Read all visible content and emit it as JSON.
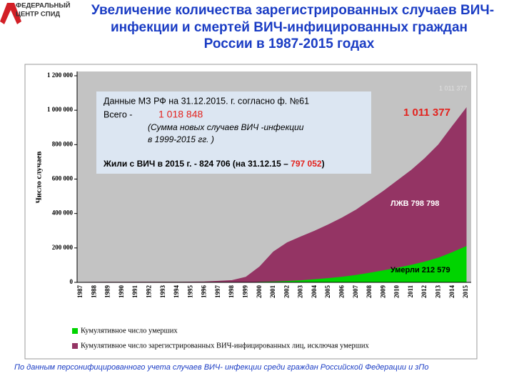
{
  "header": {
    "logo": [
      "ФЕДЕРАЛЬНЫЙ",
      "ЦЕНТР СПИД"
    ],
    "title": [
      "Увеличение количества зарегистрированных случаев ВИЧ-",
      "инфекции и смертей ВИЧ-инфицированных  граждан",
      "России в 1987-2015 годах"
    ]
  },
  "chart_data": {
    "type": "stacked_area",
    "y_label": "Число случаев",
    "categories": [
      "1987",
      "1988",
      "1989",
      "1990",
      "1991",
      "1992",
      "1993",
      "1994",
      "1995",
      "1996",
      "1997",
      "1998",
      "1999",
      "2000",
      "2001",
      "2002",
      "2003",
      "2004",
      "2005",
      "2006",
      "2007",
      "2008",
      "2009",
      "2010",
      "2011",
      "2012",
      "2013",
      "2014",
      "2015"
    ],
    "series": [
      {
        "name": "Кумулятивное число умерших",
        "color": "#00d400",
        "values": [
          0,
          10,
          50,
          100,
          150,
          200,
          300,
          400,
          500,
          600,
          700,
          800,
          1500,
          5000,
          7000,
          10000,
          14000,
          20000,
          27000,
          35000,
          45000,
          58000,
          72000,
          87000,
          104000,
          123000,
          146000,
          178000,
          212579
        ]
      },
      {
        "name": "Кумулятивное число зарегистрированных ВИЧ-инфицированных лиц, исключая умерших",
        "color": "#943464",
        "values": [
          200,
          490,
          850,
          1000,
          1150,
          1200,
          1200,
          1300,
          1400,
          2400,
          6300,
          10200,
          28500,
          85000,
          170000,
          220000,
          251000,
          278000,
          308000,
          340000,
          375000,
          417000,
          458000,
          503000,
          546000,
          597000,
          654000,
          729000,
          798798
        ]
      }
    ],
    "ylim": [
      0,
      1200000
    ],
    "yticks": [
      0,
      {
        "value": 200000,
        "label": "200 000"
      },
      {
        "value": 400000,
        "label": "400 000"
      },
      {
        "value": 600000,
        "label": "600 000"
      },
      {
        "value": 800000,
        "label": "800 000"
      },
      {
        "value": 1000000,
        "label": "1 000 000"
      },
      {
        "value": 1200000,
        "label": "1 200 000"
      }
    ],
    "annotations": {
      "total": "1 011 377",
      "total_ghost": "1 011 377",
      "living": "ЛЖВ  798 798",
      "dead": "Умерли 212 579"
    },
    "info_box": {
      "line1": "Данные МЗ РФ на 31.12.2015. г. согласно ф. №61",
      "total_label": "Всего  -",
      "total_value": "1 018 848",
      "line3": "(Сумма новых случаев ВИЧ -инфекции",
      "line4": "в 1999-2015 гг. )",
      "living_text": "Жили с ВИЧ в 2015 г. -  824 706 (на 31.12.15 – ",
      "living_value": "797 052",
      "living_close": ")"
    }
  },
  "footer": "По данным персонифицированного  учета случаев ВИЧ- инфекции среди граждан Российской Федерации  и зПо"
}
